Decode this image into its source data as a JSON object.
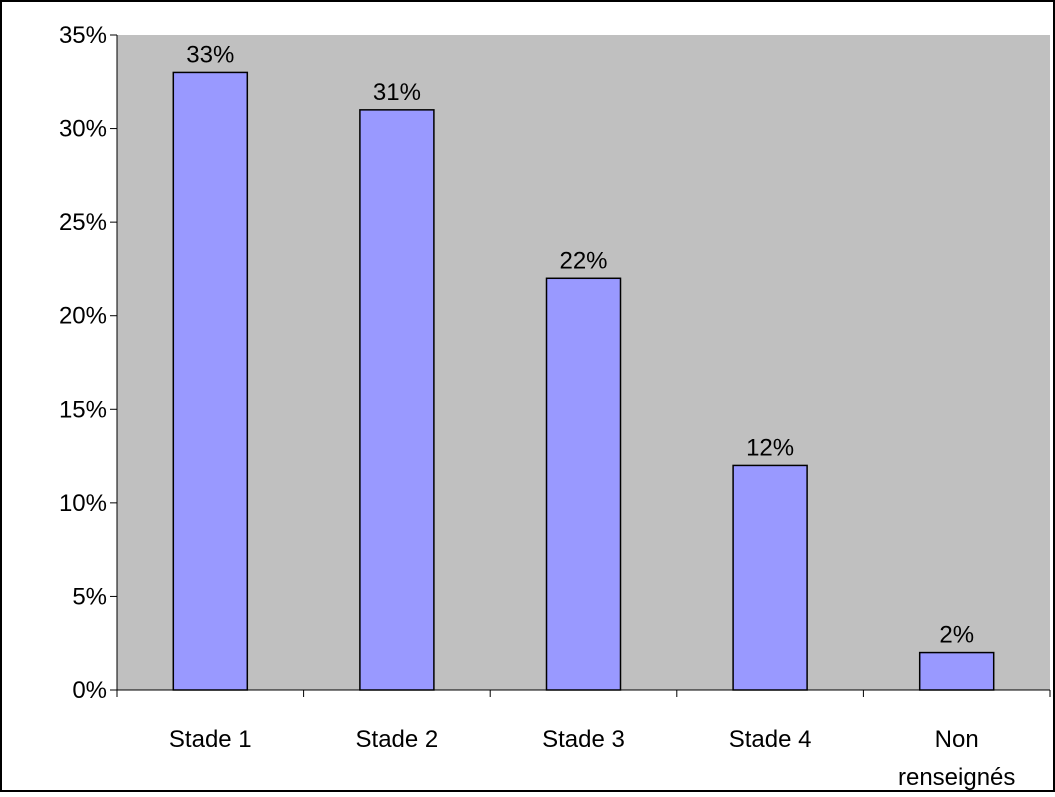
{
  "chart_data": {
    "type": "bar",
    "categories": [
      "Stade 1",
      "Stade 2",
      "Stade 3",
      "Stade 4",
      "Non renseignés"
    ],
    "category_lines": [
      [
        "Stade 1"
      ],
      [
        "Stade 2"
      ],
      [
        "Stade 3"
      ],
      [
        "Stade 4"
      ],
      [
        "Non",
        "renseignés"
      ]
    ],
    "values": [
      33,
      31,
      22,
      12,
      2
    ],
    "data_labels": [
      "33%",
      "31%",
      "22%",
      "12%",
      "2%"
    ],
    "ylim": [
      0,
      35
    ],
    "yticks": [
      0,
      5,
      10,
      15,
      20,
      25,
      30,
      35
    ],
    "ytick_labels": [
      "0%",
      "5%",
      "10%",
      "15%",
      "20%",
      "25%",
      "30%",
      "35%"
    ],
    "title": "",
    "xlabel": "",
    "ylabel": "",
    "grid": false,
    "legend": "none",
    "colors": {
      "bar_fill": "#9999ff",
      "bar_stroke": "#000000",
      "plot_background": "#c0c0c0",
      "axis": "#000000",
      "page_background": "#ffffff"
    }
  }
}
